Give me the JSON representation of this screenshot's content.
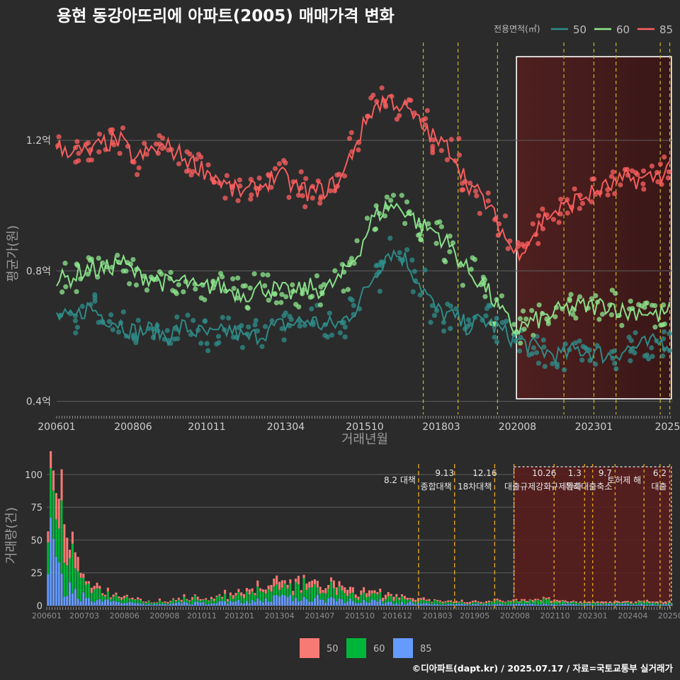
{
  "chart_data": [
    {
      "type": "scatter",
      "title": "용현 동강아뜨리에 아파트(2005) 매매가격 변화",
      "xlabel": "거래년월",
      "ylabel": "평균가(원)",
      "legend_title": "전용면적(㎡)",
      "legend_position": "top-right",
      "xlim": [
        2006.0,
        2025.5
      ],
      "ylim": [
        0.36,
        1.5
      ],
      "y_ticks": [
        {
          "value": 0.4,
          "label": "0.4억"
        },
        {
          "value": 0.8,
          "label": "0.8억"
        },
        {
          "value": 1.2,
          "label": "1.2억"
        }
      ],
      "x_ticks": [
        {
          "value": 2006.0,
          "label": "200601"
        },
        {
          "value": 2008.42,
          "label": "200806"
        },
        {
          "value": 2010.75,
          "label": "201011"
        },
        {
          "value": 2013.25,
          "label": "201304"
        },
        {
          "value": 2015.75,
          "label": "201510"
        },
        {
          "value": 2018.17,
          "label": "201803"
        },
        {
          "value": 2020.58,
          "label": "202008"
        },
        {
          "value": 2023.0,
          "label": "202301"
        },
        {
          "value": 2025.33,
          "label": "2025"
        }
      ],
      "event_lines": [
        2017.6,
        2018.7,
        2019.95,
        2022.05,
        2023.0,
        2023.7,
        2025.1,
        2025.4
      ],
      "highlight_range": [
        2020.55,
        2025.45
      ],
      "series": [
        {
          "name": "50",
          "color": "#2f8f8c",
          "x": [
            2006.0,
            2006.5,
            2007.0,
            2007.5,
            2008.0,
            2008.5,
            2009.0,
            2009.5,
            2010.0,
            2010.5,
            2011.0,
            2011.5,
            2012.0,
            2012.5,
            2013.0,
            2013.5,
            2014.0,
            2014.5,
            2015.0,
            2015.5,
            2016.0,
            2016.5,
            2017.0,
            2017.5,
            2018.0,
            2018.5,
            2019.0,
            2019.5,
            2020.0,
            2020.5,
            2021.0,
            2021.5,
            2022.0,
            2022.5,
            2023.0,
            2023.5,
            2024.0,
            2024.5,
            2025.0,
            2025.4
          ],
          "y": [
            0.66,
            0.65,
            0.69,
            0.66,
            0.64,
            0.61,
            0.62,
            0.6,
            0.63,
            0.61,
            0.6,
            0.62,
            0.59,
            0.61,
            0.63,
            0.64,
            0.65,
            0.63,
            0.64,
            0.69,
            0.78,
            0.86,
            0.84,
            0.76,
            0.68,
            0.66,
            0.63,
            0.65,
            0.62,
            0.59,
            0.57,
            0.55,
            0.54,
            0.56,
            0.55,
            0.54,
            0.56,
            0.57,
            0.58,
            0.58
          ]
        },
        {
          "name": "60",
          "color": "#8ee88e",
          "x": [
            2006.0,
            2006.5,
            2007.0,
            2007.5,
            2008.0,
            2008.5,
            2009.0,
            2009.5,
            2010.0,
            2010.5,
            2011.0,
            2011.5,
            2012.0,
            2012.5,
            2013.0,
            2013.5,
            2014.0,
            2014.5,
            2015.0,
            2015.5,
            2016.0,
            2016.5,
            2017.0,
            2017.5,
            2018.0,
            2018.5,
            2019.0,
            2019.5,
            2020.0,
            2020.5,
            2021.0,
            2021.5,
            2022.0,
            2022.5,
            2023.0,
            2023.5,
            2024.0,
            2024.5,
            2025.0,
            2025.4
          ],
          "y": [
            0.77,
            0.78,
            0.81,
            0.8,
            0.83,
            0.79,
            0.78,
            0.76,
            0.77,
            0.74,
            0.76,
            0.74,
            0.73,
            0.75,
            0.74,
            0.73,
            0.75,
            0.74,
            0.78,
            0.85,
            0.96,
            1.0,
            0.99,
            0.94,
            0.92,
            0.87,
            0.8,
            0.76,
            0.68,
            0.62,
            0.64,
            0.66,
            0.68,
            0.69,
            0.69,
            0.7,
            0.67,
            0.68,
            0.66,
            0.68
          ]
        },
        {
          "name": "85",
          "color": "#ff6060",
          "x": [
            2006.0,
            2006.5,
            2007.0,
            2007.5,
            2008.0,
            2008.5,
            2009.0,
            2009.5,
            2010.0,
            2010.5,
            2011.0,
            2011.5,
            2012.0,
            2012.5,
            2013.0,
            2013.5,
            2014.0,
            2014.5,
            2015.0,
            2015.5,
            2016.0,
            2016.5,
            2017.0,
            2017.5,
            2018.0,
            2018.5,
            2019.0,
            2019.5,
            2020.0,
            2020.5,
            2021.0,
            2021.5,
            2022.0,
            2022.5,
            2023.0,
            2023.5,
            2024.0,
            2024.5,
            2025.0,
            2025.4
          ],
          "y": [
            1.18,
            1.17,
            1.16,
            1.19,
            1.2,
            1.14,
            1.17,
            1.18,
            1.15,
            1.12,
            1.09,
            1.05,
            1.04,
            1.06,
            1.1,
            1.06,
            1.04,
            1.05,
            1.08,
            1.2,
            1.3,
            1.33,
            1.3,
            1.25,
            1.2,
            1.17,
            1.07,
            1.02,
            0.94,
            0.85,
            0.9,
            0.97,
            0.99,
            1.02,
            1.04,
            1.06,
            1.08,
            1.08,
            1.09,
            1.12
          ]
        }
      ]
    },
    {
      "type": "bar",
      "stacked": true,
      "ylabel": "거래량(건)",
      "xlim": [
        2006.0,
        2025.5
      ],
      "ylim": [
        0,
        108
      ],
      "y_ticks": [
        0,
        25,
        50,
        75,
        100
      ],
      "x_ticks": [
        {
          "value": 2006.0,
          "label": "200601"
        },
        {
          "value": 2007.17,
          "label": "200703"
        },
        {
          "value": 2008.42,
          "label": "200806"
        },
        {
          "value": 2009.67,
          "label": "200908"
        },
        {
          "value": 2010.83,
          "label": "201011"
        },
        {
          "value": 2012.0,
          "label": "201201"
        },
        {
          "value": 2013.25,
          "label": "201304"
        },
        {
          "value": 2014.5,
          "label": "201407"
        },
        {
          "value": 2015.75,
          "label": "201510"
        },
        {
          "value": 2016.92,
          "label": "201612"
        },
        {
          "value": 2018.17,
          "label": "201803"
        },
        {
          "value": 2019.33,
          "label": "201905"
        },
        {
          "value": 2020.58,
          "label": "202008"
        },
        {
          "value": 2021.83,
          "label": "202110"
        },
        {
          "value": 2023.0,
          "label": "202301"
        },
        {
          "value": 2024.25,
          "label": "202404"
        },
        {
          "value": 2025.42,
          "label": "20250"
        }
      ],
      "legend_position": "bottom",
      "highlight_range": [
        2020.55,
        2025.45
      ],
      "events": [
        {
          "x": 2017.58,
          "date": "",
          "label": "8.2 대책"
        },
        {
          "x": 2018.7,
          "date": "9.13",
          "label": "종합대책"
        },
        {
          "x": 2019.95,
          "date": "12.16",
          "label": "18차대책"
        },
        {
          "x": 2020.55,
          "date": "",
          "label": ""
        },
        {
          "x": 2021.8,
          "date": "10.26",
          "label": "대출규제강화"
        },
        {
          "x": 2022.75,
          "date": "1.3",
          "label": "규제완화"
        },
        {
          "x": 2023.0,
          "date": "",
          "label": ""
        },
        {
          "x": 2023.7,
          "date": "9.7",
          "label": "특례대출축소"
        },
        {
          "x": 2024.6,
          "date": "",
          "label": "토허제 해"
        },
        {
          "x": 2025.1,
          "date": "",
          "label": ""
        },
        {
          "x": 2025.4,
          "date": "6.2",
          "label": "대출"
        }
      ],
      "series": [
        {
          "name": "50",
          "color": "#f87a74",
          "x": [
            2006.0,
            2006.5,
            2007.0,
            2007.5,
            2008.0,
            2008.5,
            2009.0,
            2009.5,
            2010.0,
            2010.5,
            2011.0,
            2011.5,
            2012.0,
            2012.5,
            2013.0,
            2013.5,
            2014.0,
            2014.5,
            2015.0,
            2015.5,
            2016.0,
            2016.5,
            2017.0,
            2017.5,
            2018.0,
            2018.5,
            2019.0,
            2019.5,
            2020.0,
            2020.5,
            2021.0,
            2021.5,
            2022.0,
            2022.5,
            2023.0,
            2023.5,
            2024.0,
            2024.5,
            2025.0,
            2025.4
          ],
          "values": [
            12,
            20,
            6,
            3,
            2,
            1,
            1,
            1,
            1,
            2,
            1,
            2,
            2,
            3,
            4,
            5,
            4,
            4,
            4,
            3,
            3,
            3,
            2,
            2,
            1,
            1,
            1,
            1,
            1,
            1,
            1,
            1,
            1,
            1,
            1,
            1,
            1,
            1,
            1,
            1
          ]
        },
        {
          "name": "60",
          "color": "#00b63a",
          "x": [
            2006.0,
            2006.5,
            2007.0,
            2007.5,
            2008.0,
            2008.5,
            2009.0,
            2009.5,
            2010.0,
            2010.5,
            2011.0,
            2011.5,
            2012.0,
            2012.5,
            2013.0,
            2013.5,
            2014.0,
            2014.5,
            2015.0,
            2015.5,
            2016.0,
            2016.5,
            2017.0,
            2017.5,
            2018.0,
            2018.5,
            2019.0,
            2019.5,
            2020.0,
            2020.5,
            2021.0,
            2021.5,
            2022.0,
            2022.5,
            2023.0,
            2023.5,
            2024.0,
            2024.5,
            2025.0,
            2025.4
          ],
          "values": [
            22,
            40,
            12,
            6,
            4,
            3,
            2,
            2,
            2,
            3,
            3,
            4,
            4,
            6,
            8,
            10,
            9,
            10,
            8,
            6,
            5,
            4,
            3,
            2,
            2,
            1,
            1,
            1,
            2,
            2,
            2,
            3,
            2,
            1,
            1,
            1,
            1,
            2,
            1,
            1
          ]
        },
        {
          "name": "85",
          "color": "#659bff",
          "x": [
            2006.0,
            2006.5,
            2007.0,
            2007.5,
            2008.0,
            2008.5,
            2009.0,
            2009.5,
            2010.0,
            2010.5,
            2011.0,
            2011.5,
            2012.0,
            2012.5,
            2013.0,
            2013.5,
            2014.0,
            2014.5,
            2015.0,
            2015.5,
            2016.0,
            2016.5,
            2017.0,
            2017.5,
            2018.0,
            2018.5,
            2019.0,
            2019.5,
            2020.0,
            2020.5,
            2021.0,
            2021.5,
            2022.0,
            2022.5,
            2023.0,
            2023.5,
            2024.0,
            2024.5,
            2025.0,
            2025.4
          ],
          "values": [
            48,
            14,
            8,
            4,
            3,
            2,
            1,
            1,
            2,
            2,
            2,
            3,
            3,
            4,
            5,
            6,
            5,
            6,
            5,
            4,
            3,
            3,
            2,
            2,
            1,
            1,
            1,
            1,
            1,
            1,
            1,
            1,
            1,
            1,
            1,
            1,
            1,
            1,
            1,
            1
          ]
        }
      ]
    }
  ],
  "credit": "©디아파트(dapt.kr) / 2025.07.17 / 자료=국토교통부 실거래가"
}
